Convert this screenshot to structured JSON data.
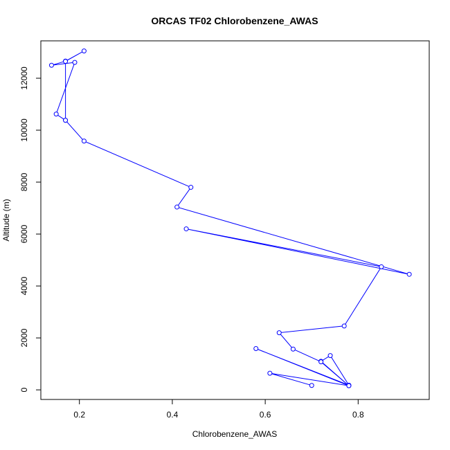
{
  "chart_data": {
    "type": "line",
    "title": "ORCAS TF02 Chlorobenzene_AWAS",
    "xlabel": "Chlorobenzene_AWAS",
    "ylabel": "Altitude (m)",
    "xlim": [
      0.117,
      0.953
    ],
    "ylim": [
      -370,
      13440
    ],
    "xticks": [
      0.2,
      0.4,
      0.6,
      0.8
    ],
    "xtick_labels": [
      "0.2",
      "0.4",
      "0.6",
      "0.8"
    ],
    "yticks": [
      0,
      2000,
      4000,
      6000,
      8000,
      10000,
      12000
    ],
    "ytick_labels": [
      "0",
      "2000",
      "4000",
      "6000",
      "8000",
      "10000",
      "12000"
    ],
    "grid": false,
    "series_color": "#0000ff",
    "series": [
      {
        "x": [
          0.7,
          0.61,
          0.78,
          0.72,
          0.74,
          0.78,
          0.58,
          0.78,
          0.72,
          0.66,
          0.63,
          0.77,
          0.85,
          0.43,
          0.91,
          0.41,
          0.44,
          0.21,
          0.17,
          0.15,
          0.19,
          0.14,
          0.17,
          0.21,
          0.17,
          0.17
        ],
        "y": [
          170,
          640,
          160,
          1100,
          1320,
          180,
          1590,
          160,
          1080,
          1570,
          2200,
          2460,
          4740,
          6200,
          4450,
          7040,
          7800,
          9580,
          10380,
          10620,
          12610,
          12500,
          12660,
          13050,
          12650,
          10380
        ]
      }
    ]
  }
}
